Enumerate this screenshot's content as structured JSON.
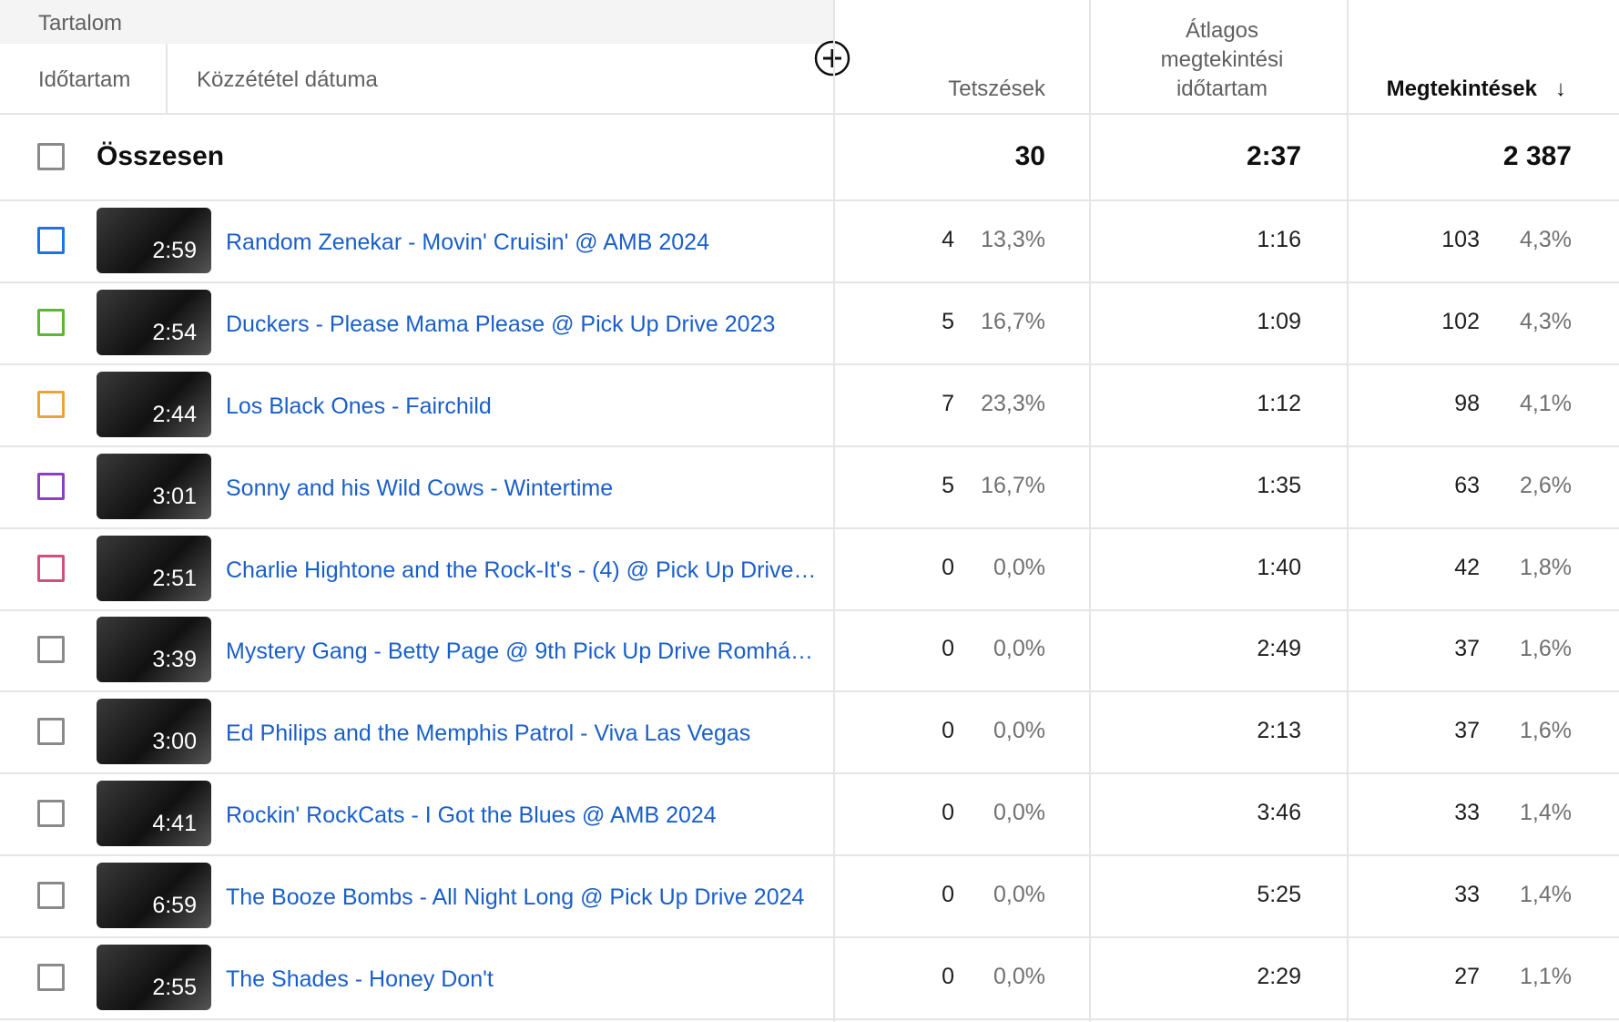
{
  "header": {
    "content": "Tartalom",
    "duration": "Időtartam",
    "published": "Közzététel dátuma",
    "likes": "Tetszések",
    "avg_duration": "Átlagos megtekintési időtartam",
    "views": "Megtekintések",
    "views_sort": "↓"
  },
  "total": {
    "label": "Összesen",
    "likes": "30",
    "avg_duration": "2:37",
    "views": "2 387"
  },
  "rows": [
    {
      "color": "#1a73e8",
      "duration": "2:59",
      "title": "Random Zenekar - Movin' Cruisin' @ AMB 2024",
      "likes": "4",
      "likes_pct": "13,3%",
      "avg_duration": "1:16",
      "views": "103",
      "views_pct": "4,3%"
    },
    {
      "color": "#5bb833",
      "duration": "2:54",
      "title": "Duckers - Please Mama Please @ Pick Up Drive 2023",
      "likes": "5",
      "likes_pct": "16,7%",
      "avg_duration": "1:09",
      "views": "102",
      "views_pct": "4,3%"
    },
    {
      "color": "#e8a33a",
      "duration": "2:44",
      "title": "Los Black Ones - Fairchild",
      "likes": "7",
      "likes_pct": "23,3%",
      "avg_duration": "1:12",
      "views": "98",
      "views_pct": "4,1%"
    },
    {
      "color": "#8e3fc1",
      "duration": "3:01",
      "title": "Sonny and his Wild Cows - Wintertime",
      "likes": "5",
      "likes_pct": "16,7%",
      "avg_duration": "1:35",
      "views": "63",
      "views_pct": "2,6%"
    },
    {
      "color": "#d4507a",
      "duration": "2:51",
      "title": "Charlie Hightone and the Rock-It's - (4) @ Pick Up Drive…",
      "likes": "0",
      "likes_pct": "0,0%",
      "avg_duration": "1:40",
      "views": "42",
      "views_pct": "1,8%"
    },
    {
      "color": "#8a8a8a",
      "duration": "3:39",
      "title": "Mystery Gang - Betty Page @ 9th Pick Up Drive Romhá…",
      "likes": "0",
      "likes_pct": "0,0%",
      "avg_duration": "2:49",
      "views": "37",
      "views_pct": "1,6%"
    },
    {
      "color": "#8a8a8a",
      "duration": "3:00",
      "title": "Ed Philips and the Memphis Patrol - Viva Las Vegas",
      "likes": "0",
      "likes_pct": "0,0%",
      "avg_duration": "2:13",
      "views": "37",
      "views_pct": "1,6%"
    },
    {
      "color": "#8a8a8a",
      "duration": "4:41",
      "title": "Rockin' RockCats - I Got the Blues @ AMB 2024",
      "likes": "0",
      "likes_pct": "0,0%",
      "avg_duration": "3:46",
      "views": "33",
      "views_pct": "1,4%"
    },
    {
      "color": "#8a8a8a",
      "duration": "6:59",
      "title": "The Booze Bombs - All Night Long @ Pick Up Drive 2024",
      "likes": "0",
      "likes_pct": "0,0%",
      "avg_duration": "5:25",
      "views": "33",
      "views_pct": "1,4%"
    },
    {
      "color": "#8a8a8a",
      "duration": "2:55",
      "title": "The Shades - Honey Don't",
      "likes": "0",
      "likes_pct": "0,0%",
      "avg_duration": "2:29",
      "views": "27",
      "views_pct": "1,1%"
    }
  ]
}
